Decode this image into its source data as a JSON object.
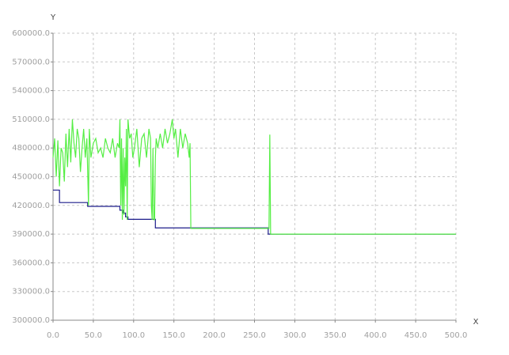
{
  "chart_data": {
    "type": "line",
    "x_label": "X",
    "y_label": "Y",
    "grid": true,
    "xlim": [
      0,
      500
    ],
    "ylim": [
      300000,
      600000
    ],
    "xticks": [
      {
        "value": 0,
        "label": "0.0"
      },
      {
        "value": 50,
        "label": "50.0"
      },
      {
        "value": 100,
        "label": "100.0"
      },
      {
        "value": 150,
        "label": "150.0"
      },
      {
        "value": 200,
        "label": "200.0"
      },
      {
        "value": 250,
        "label": "250.0"
      },
      {
        "value": 300,
        "label": "300.0"
      },
      {
        "value": 350,
        "label": "350.0"
      },
      {
        "value": 400,
        "label": "400.0"
      },
      {
        "value": 450,
        "label": "450.0"
      },
      {
        "value": 500,
        "label": "500.0"
      }
    ],
    "yticks": [
      {
        "value": 300000,
        "label": "300000.0"
      },
      {
        "value": 330000,
        "label": "330000.0"
      },
      {
        "value": 360000,
        "label": "360000.0"
      },
      {
        "value": 390000,
        "label": "390000.0"
      },
      {
        "value": 420000,
        "label": "420000.0"
      },
      {
        "value": 450000,
        "label": "450000.0"
      },
      {
        "value": 480000,
        "label": "480000.0"
      },
      {
        "value": 510000,
        "label": "510000.0"
      },
      {
        "value": 540000,
        "label": "540000.0"
      },
      {
        "value": 570000,
        "label": "570000.0"
      },
      {
        "value": 600000,
        "label": "600000.0"
      }
    ],
    "series": [
      {
        "color": "#1c1c8a",
        "x": [
          0,
          8,
          8,
          43,
          43,
          83,
          83,
          87,
          87,
          90,
          90,
          93,
          93,
          127,
          127,
          267,
          267,
          500
        ],
        "values": [
          436000,
          436000,
          423000,
          423000,
          419000,
          419000,
          415000,
          415000,
          412000,
          412000,
          408000,
          408000,
          405500,
          405500,
          396500,
          396500,
          390000,
          390000
        ]
      },
      {
        "color": "#55ee44",
        "x": [
          0,
          2,
          4,
          6,
          8,
          10,
          12,
          14,
          16,
          18,
          20,
          22,
          24,
          26,
          28,
          30,
          32,
          34,
          36,
          38,
          40,
          42,
          44,
          45,
          47,
          50,
          53,
          56,
          59,
          62,
          65,
          68,
          71,
          74,
          77,
          80,
          82,
          83,
          84,
          85,
          86,
          87,
          88,
          89,
          90,
          91,
          92,
          93,
          95,
          97,
          99,
          101,
          104,
          107,
          110,
          113,
          116,
          119,
          121,
          122,
          123,
          124,
          125,
          126,
          127,
          128,
          130,
          133,
          136,
          139,
          142,
          145,
          148,
          150,
          152,
          155,
          158,
          161,
          164,
          167,
          169,
          170,
          171,
          175,
          268,
          269,
          270,
          500
        ],
        "values": [
          470000,
          490000,
          450000,
          488000,
          440000,
          480000,
          475000,
          445000,
          495000,
          460000,
          500000,
          465000,
          510000,
          485000,
          470000,
          500000,
          490000,
          455000,
          480000,
          500000,
          470000,
          490000,
          420000,
          500000,
          470000,
          485000,
          490000,
          475000,
          480000,
          470000,
          490000,
          480000,
          475000,
          490000,
          470000,
          485000,
          480000,
          510000,
          420000,
          490000,
          405000,
          480000,
          410000,
          470000,
          440000,
          500000,
          405000,
          510000,
          490000,
          495000,
          470000,
          480000,
          500000,
          460000,
          490000,
          495000,
          470000,
          500000,
          490000,
          420000,
          405000,
          480000,
          405000,
          405000,
          470000,
          490000,
          480000,
          495000,
          480000,
          500000,
          485000,
          495000,
          510000,
          490000,
          500000,
          470000,
          500000,
          480000,
          495000,
          485000,
          470000,
          485000,
          396000,
          396000,
          396000,
          494000,
          390000,
          390000
        ]
      }
    ]
  }
}
